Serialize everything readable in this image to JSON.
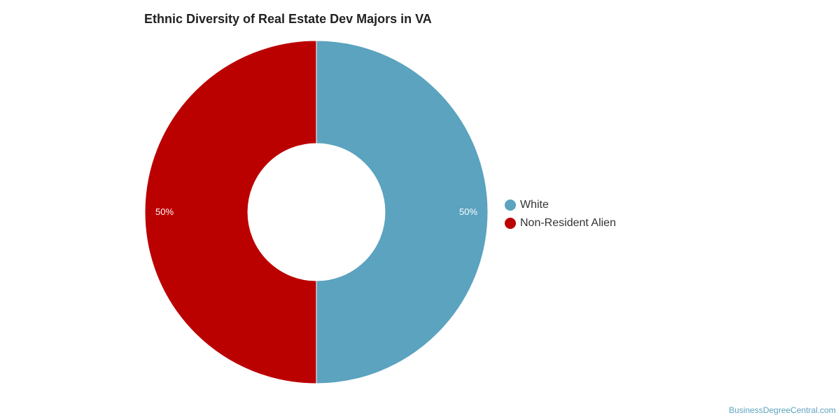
{
  "chart_data": {
    "type": "pie",
    "title": "Ethnic Diversity of Real Estate Dev Majors in VA",
    "donut": true,
    "legend_position": "right",
    "slices": [
      {
        "name": "White",
        "value": 50,
        "label": "50%",
        "color": "#5ba3bf"
      },
      {
        "name": "Non-Resident Alien",
        "value": 50,
        "label": "50%",
        "color": "#bb0000"
      }
    ]
  },
  "watermark": "BusinessDegreeCentral.com"
}
